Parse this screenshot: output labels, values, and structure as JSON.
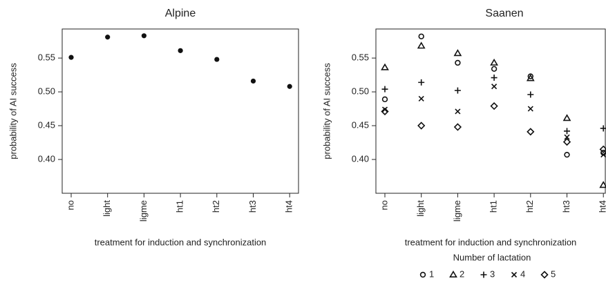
{
  "chart_data": [
    {
      "type": "scatter",
      "title": "Alpine",
      "x_label": "treatment for induction and synchronization",
      "y_label": "probability of AI success",
      "categories": [
        "no",
        "light",
        "ligme",
        "ht1",
        "ht2",
        "ht3",
        "ht4"
      ],
      "series": [
        {
          "name": null,
          "color": "#111111",
          "marker": "dot",
          "values": [
            0.551,
            0.581,
            0.583,
            0.561,
            0.548,
            0.516,
            0.508
          ]
        }
      ],
      "ylim": [
        0.35,
        0.593
      ],
      "yticks": [
        {
          "value": 0.4,
          "label": "0.40"
        },
        0.45,
        {
          "value": 0.5,
          "label": "0.50"
        },
        0.55
      ]
    },
    {
      "type": "scatter",
      "title": "Saanen",
      "x_label": "treatment for induction and synchronization",
      "y_label": "probability of AI success",
      "legend_title": "Number of lactation",
      "categories": [
        "no",
        "light",
        "ligme",
        "ht1",
        "ht2",
        "ht3",
        "ht4"
      ],
      "series": [
        {
          "name": "1",
          "color": "#111111",
          "marker": "circle",
          "values": [
            0.489,
            0.582,
            0.543,
            0.534,
            0.523,
            0.407,
            0.41
          ]
        },
        {
          "name": "2",
          "color": "#111111",
          "marker": "triangle",
          "values": [
            0.536,
            0.568,
            0.557,
            0.543,
            0.52,
            0.461,
            0.362
          ]
        },
        {
          "name": "3",
          "color": "#111111",
          "marker": "plus",
          "values": [
            0.504,
            0.514,
            0.502,
            0.521,
            0.496,
            0.442,
            0.446
          ]
        },
        {
          "name": "4",
          "color": "#111111",
          "marker": "cross",
          "values": [
            0.474,
            0.49,
            0.471,
            0.508,
            0.475,
            0.433,
            0.407
          ]
        },
        {
          "name": "5",
          "color": "#111111",
          "marker": "diamond",
          "values": [
            0.471,
            0.45,
            0.448,
            0.479,
            0.441,
            0.426,
            0.415
          ]
        }
      ],
      "ylim": [
        0.35,
        0.593
      ],
      "yticks": [
        {
          "value": 0.4,
          "label": "0.40"
        },
        0.45,
        {
          "value": 0.5,
          "label": "0.50"
        },
        0.55
      ]
    }
  ]
}
